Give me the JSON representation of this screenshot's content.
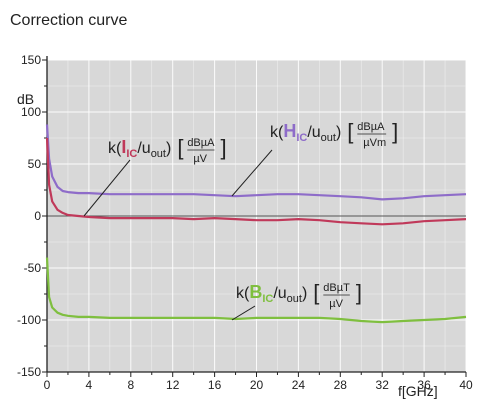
{
  "page": {
    "title": "Correction curve"
  },
  "colors": {
    "plot_bg": "#d8d8d8",
    "grid": "#ffffff",
    "I": "#c0395a",
    "H": "#8e6cc9",
    "B": "#7fbf3f"
  },
  "chart_data": {
    "type": "line",
    "title": "Correction curve",
    "xlabel": "f[GHz]",
    "ylabel": "dB",
    "xlim": [
      0,
      40
    ],
    "ylim": [
      -150,
      150
    ],
    "xticks": [
      "0",
      "4",
      "8",
      "12",
      "16",
      "20",
      "24",
      "28",
      "32",
      "36",
      "40"
    ],
    "yticks": [
      "150",
      "100",
      "50",
      "0",
      "-50",
      "-100",
      "-150"
    ],
    "grid": true,
    "series": [
      {
        "id": "H",
        "color": "#8e6cc9",
        "x": [
          0,
          0.2,
          0.5,
          1,
          1.5,
          2,
          3,
          4,
          6,
          8,
          10,
          12,
          14,
          16,
          18,
          20,
          22,
          24,
          26,
          28,
          30,
          32,
          34,
          36,
          38,
          40
        ],
        "y": [
          88,
          55,
          38,
          28,
          24,
          23,
          22,
          22,
          21,
          21,
          21,
          21,
          21,
          20,
          19,
          20,
          21,
          21,
          20,
          19,
          18,
          16,
          17,
          19,
          20,
          21
        ],
        "annotation": {
          "prefix": "k(",
          "symbol": "H",
          "sub": "IC",
          "mid": "/u",
          "sub2": "out",
          "close": ")",
          "unit_num": "dBµA",
          "unit_den": "µVm"
        }
      },
      {
        "id": "I",
        "color": "#c0395a",
        "x": [
          0,
          0.2,
          0.5,
          1,
          1.5,
          2,
          3,
          4,
          6,
          8,
          10,
          12,
          14,
          16,
          18,
          20,
          22,
          24,
          26,
          28,
          30,
          32,
          34,
          36,
          38,
          40
        ],
        "y": [
          75,
          30,
          14,
          6,
          3,
          1,
          0,
          -1,
          -2,
          -2,
          -2,
          -2,
          -3,
          -2,
          -3,
          -4,
          -4,
          -3,
          -4,
          -6,
          -7,
          -8,
          -7,
          -5,
          -4,
          -3
        ],
        "annotation": {
          "prefix": "k(",
          "symbol": "I",
          "sub": "IC",
          "mid": "/u",
          "sub2": "out",
          "close": ")",
          "unit_num": "dBµA",
          "unit_den": "µV"
        }
      },
      {
        "id": "B",
        "color": "#7fbf3f",
        "x": [
          0,
          0.2,
          0.5,
          1,
          1.5,
          2,
          3,
          4,
          6,
          8,
          10,
          12,
          14,
          16,
          18,
          20,
          22,
          24,
          26,
          28,
          30,
          32,
          34,
          36,
          38,
          40
        ],
        "y": [
          -40,
          -78,
          -88,
          -93,
          -95,
          -96,
          -97,
          -97,
          -98,
          -98,
          -98,
          -98,
          -98,
          -98,
          -99,
          -98,
          -98,
          -98,
          -98,
          -99,
          -101,
          -102,
          -101,
          -100,
          -99,
          -97
        ],
        "annotation": {
          "prefix": "k(",
          "symbol": "B",
          "sub": "IC",
          "mid": "/u",
          "sub2": "out",
          "close": ")",
          "unit_num": "dBµT",
          "unit_den": "µV"
        }
      }
    ]
  }
}
